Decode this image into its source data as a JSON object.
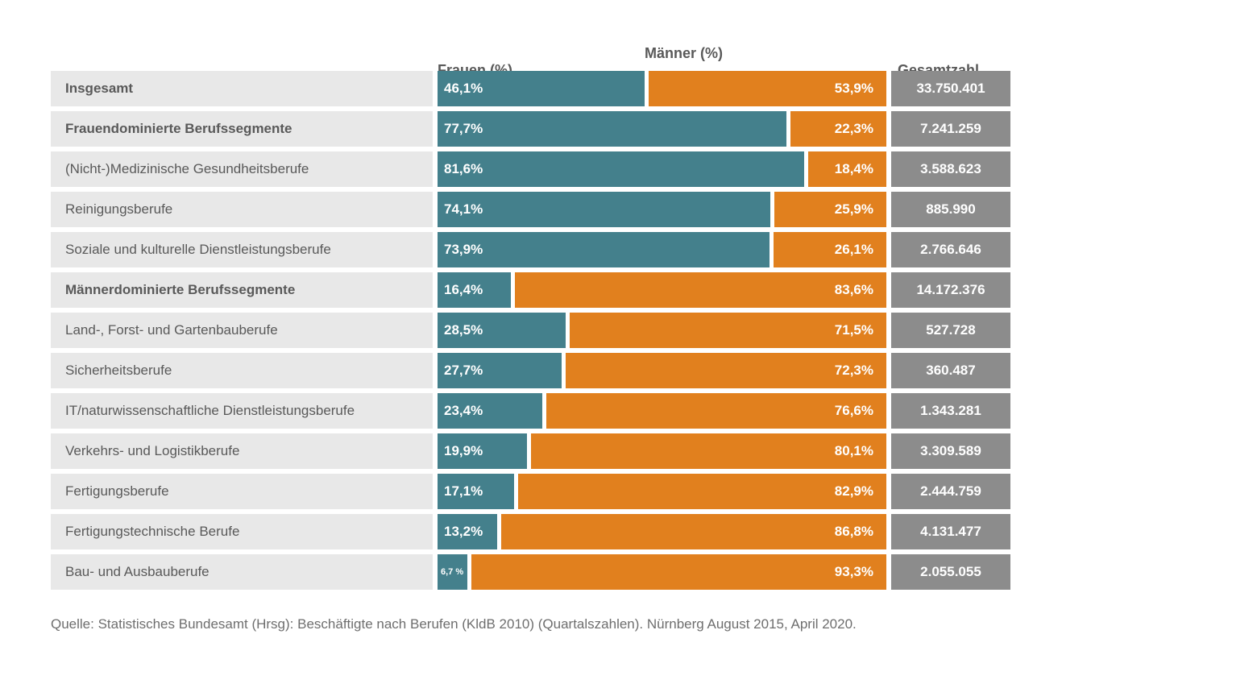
{
  "header": {
    "frauen": "Frauen (%)",
    "maenner": "Männer (%)",
    "gesamt": "Gesamtzahl"
  },
  "rows": [
    {
      "label": "Insgesamt",
      "bold": true,
      "frauen_label": "46,1%",
      "frauen_pct": 46.1,
      "maenner_label": "53,9%",
      "maenner_pct": 53.9,
      "gesamt": "33.750.401",
      "small": false
    },
    {
      "label": "Frauendominierte Berufssegmente",
      "bold": true,
      "frauen_label": "77,7%",
      "frauen_pct": 77.7,
      "maenner_label": "22,3%",
      "maenner_pct": 22.3,
      "gesamt": "7.241.259",
      "small": false
    },
    {
      "label": "(Nicht-)Medizinische Gesundheitsberufe",
      "bold": false,
      "frauen_label": "81,6%",
      "frauen_pct": 81.6,
      "maenner_label": "18,4%",
      "maenner_pct": 18.4,
      "gesamt": "3.588.623",
      "small": false
    },
    {
      "label": "Reinigungsberufe",
      "bold": false,
      "frauen_label": "74,1%",
      "frauen_pct": 74.1,
      "maenner_label": "25,9%",
      "maenner_pct": 25.9,
      "gesamt": "885.990",
      "small": false
    },
    {
      "label": "Soziale und kulturelle Dienstleistungsberufe",
      "bold": false,
      "frauen_label": "73,9%",
      "frauen_pct": 73.9,
      "maenner_label": "26,1%",
      "maenner_pct": 26.1,
      "gesamt": "2.766.646",
      "small": false
    },
    {
      "label": "Männerdominierte Berufssegmente",
      "bold": true,
      "frauen_label": "16,4%",
      "frauen_pct": 16.4,
      "maenner_label": "83,6%",
      "maenner_pct": 83.6,
      "gesamt": "14.172.376",
      "small": false
    },
    {
      "label": "Land-, Forst- und Gartenbauberufe",
      "bold": false,
      "frauen_label": "28,5%",
      "frauen_pct": 28.5,
      "maenner_label": "71,5%",
      "maenner_pct": 71.5,
      "gesamt": "527.728",
      "small": false
    },
    {
      "label": "Sicherheitsberufe",
      "bold": false,
      "frauen_label": "27,7%",
      "frauen_pct": 27.7,
      "maenner_label": "72,3%",
      "maenner_pct": 72.3,
      "gesamt": "360.487",
      "small": false
    },
    {
      "label": "IT/naturwissenschaftliche Dienstleistungsberufe",
      "bold": false,
      "frauen_label": "23,4%",
      "frauen_pct": 23.4,
      "maenner_label": "76,6%",
      "maenner_pct": 76.6,
      "gesamt": "1.343.281",
      "small": false
    },
    {
      "label": "Verkehrs- und Logistikberufe",
      "bold": false,
      "frauen_label": "19,9%",
      "frauen_pct": 19.9,
      "maenner_label": "80,1%",
      "maenner_pct": 80.1,
      "gesamt": "3.309.589",
      "small": false
    },
    {
      "label": "Fertigungsberufe",
      "bold": false,
      "frauen_label": "17,1%",
      "frauen_pct": 17.1,
      "maenner_label": "82,9%",
      "maenner_pct": 82.9,
      "gesamt": "2.444.759",
      "small": false
    },
    {
      "label": "Fertigungstechnische Berufe",
      "bold": false,
      "frauen_label": "13,2%",
      "frauen_pct": 13.2,
      "maenner_label": "86,8%",
      "maenner_pct": 86.8,
      "gesamt": "4.131.477",
      "small": false
    },
    {
      "label": "Bau- und Ausbauberufe",
      "bold": false,
      "frauen_label": "6,7 %",
      "frauen_pct": 6.7,
      "maenner_label": "93,3%",
      "maenner_pct": 93.3,
      "gesamt": "2.055.055",
      "small": true
    }
  ],
  "footer": {
    "source": "Quelle: Statistisches Bundesamt (Hrsg): Beschäftigte nach Berufen (KldB 2010) (Quartalszahlen). Nürnberg August 2015, April 2020."
  },
  "colors": {
    "teal": "#44808C",
    "orange": "#E1801E",
    "gray": "#8C8C8C",
    "row_background": "#E8E8E8",
    "label_text": "#595959",
    "bar_text": "#FFFFFF",
    "footer_text": "#6E6E6E"
  },
  "chart_data": {
    "type": "bar",
    "subtype": "horizontal-stacked-100pct",
    "title": "",
    "categories": [
      "Insgesamt",
      "Frauendominierte Berufssegmente",
      "(Nicht-)Medizinische Gesundheitsberufe",
      "Reinigungsberufe",
      "Soziale und kulturelle Dienstleistungsberufe",
      "Männerdominierte Berufssegmente",
      "Land-, Forst- und Gartenbauberufe",
      "Sicherheitsberufe",
      "IT/naturwissenschaftliche Dienstleistungsberufe",
      "Verkehrs- und Logistikberufe",
      "Fertigungsberufe",
      "Fertigungstechnische Berufe",
      "Bau- und Ausbauberufe"
    ],
    "series": [
      {
        "name": "Frauen (%)",
        "color": "#44808C",
        "values": [
          46.1,
          77.7,
          81.6,
          74.1,
          73.9,
          16.4,
          28.5,
          27.7,
          23.4,
          19.9,
          17.1,
          13.2,
          6.7
        ]
      },
      {
        "name": "Männer (%)",
        "color": "#E1801E",
        "values": [
          53.9,
          22.3,
          18.4,
          25.9,
          26.1,
          83.6,
          71.5,
          72.3,
          76.6,
          80.1,
          82.9,
          86.8,
          93.3
        ]
      }
    ],
    "totals_column": {
      "name": "Gesamtzahl",
      "values": [
        33750401,
        7241259,
        3588623,
        885990,
        2766646,
        14172376,
        527728,
        360487,
        1343281,
        3309589,
        2444759,
        4131477,
        2055055
      ],
      "formatted": [
        "33.750.401",
        "7.241.259",
        "3.588.623",
        "885.990",
        "2.766.646",
        "14.172.376",
        "527.728",
        "360.487",
        "1.343.281",
        "3.309.589",
        "2.444.759",
        "4.131.477",
        "2.055.055"
      ]
    },
    "xlim": [
      0,
      100
    ],
    "grid": false,
    "legend_position": "column-headers-top",
    "bold_categories": [
      "Insgesamt",
      "Frauendominierte Berufssegmente",
      "Männerdominierte Berufssegmente"
    ],
    "annotations": "data labels shown inside bars",
    "source": "Quelle: Statistisches Bundesamt (Hrsg): Beschäftigte nach Berufen (KldB 2010) (Quartalszahlen). Nürnberg August 2015, April 2020."
  }
}
